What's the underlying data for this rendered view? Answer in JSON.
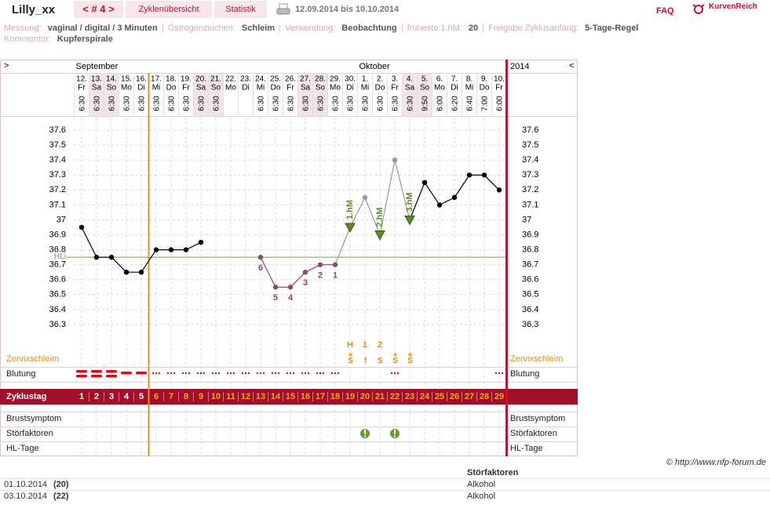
{
  "header": {
    "user": "Lilly_xx",
    "cycle_nav": "< # 4 >",
    "tabs": [
      "Zyklenübersicht",
      "Statistik"
    ],
    "date_range": "12.09.2014 bis 10.10.2014",
    "faq": "FAQ",
    "brand": "KurvenReich"
  },
  "info": {
    "fields": [
      {
        "label": "Messung:",
        "value": "vaginal / digital / 3 Minuten"
      },
      {
        "label": "Östrogenzeichen:",
        "value": "Schleim"
      },
      {
        "label": "Verwendung:",
        "value": "Beobachtung"
      },
      {
        "label": "früheste 1.hM:",
        "value": "20"
      },
      {
        "label": "Freigabe Zyklusanfang:",
        "value": "5-Tage-Regel"
      }
    ],
    "comment": {
      "label": "Kommentar:",
      "value": "Kupferspirale"
    }
  },
  "chart_data": {
    "type": "line",
    "nav_left": ">",
    "nav_right": "<",
    "year": "2014",
    "months": [
      "September",
      "Oktober"
    ],
    "days": [
      "12.",
      "13.",
      "14.",
      "15.",
      "16.",
      "17.",
      "18.",
      "19.",
      "20.",
      "21.",
      "22.",
      "23.",
      "24.",
      "25.",
      "26.",
      "27.",
      "28.",
      "29.",
      "30.",
      "1.",
      "2.",
      "3.",
      "4.",
      "5.",
      "6.",
      "7.",
      "8.",
      "9.",
      "10."
    ],
    "weekdays": [
      "Fr",
      "Sa",
      "So",
      "Mo",
      "Di",
      "Mi",
      "Do",
      "Fr",
      "Sa",
      "So",
      "Mo",
      "Di",
      "Mi",
      "Do",
      "Fr",
      "Sa",
      "So",
      "Mo",
      "Di",
      "Mi",
      "Do",
      "Fr",
      "Sa",
      "So",
      "Mo",
      "Di",
      "Mi",
      "Do",
      "Fr"
    ],
    "times": [
      "6:30",
      "6:30",
      "6:30",
      "6:30",
      "6:30",
      "6:30",
      "6:30",
      "6:30",
      "6:30",
      "6:30",
      null,
      null,
      "6:30",
      "6:30",
      "6:30",
      "6:30",
      "6:30",
      "6:30",
      "6:30",
      "6:30",
      "6:30",
      "6:30",
      "6:30",
      "9:50",
      "6:00",
      "6:20",
      "6:40",
      "7:00",
      "6:00"
    ],
    "values": [
      36.95,
      36.75,
      36.75,
      36.65,
      36.65,
      36.8,
      36.8,
      36.8,
      36.85,
      null,
      null,
      null,
      36.75,
      36.55,
      36.55,
      36.65,
      36.7,
      36.7,
      36.95,
      37.15,
      36.9,
      37.4,
      37.0,
      37.25,
      37.1,
      37.15,
      37.3,
      37.3,
      37.2
    ],
    "point_colors": [
      "#000000",
      "#000000",
      "#000000",
      "#000000",
      "#000000",
      "#000000",
      "#000000",
      "#000000",
      "#000000",
      null,
      null,
      null,
      "#8b4c5c",
      "#8b4c5c",
      "#8b4c5c",
      "#8b4c5c",
      "#8b4c5c",
      "#8b4c5c",
      "#5e8a2c",
      "#999999",
      "#5e8a2c",
      "#999999",
      "#5e8a2c",
      "#000000",
      "#000000",
      "#000000",
      "#000000",
      "#000000",
      "#000000"
    ],
    "point_labels": [
      null,
      null,
      null,
      null,
      null,
      null,
      null,
      null,
      null,
      null,
      null,
      null,
      "6",
      "5",
      "4",
      "3",
      "2",
      "1",
      null,
      null,
      null,
      null,
      null,
      null,
      null,
      null,
      null,
      null,
      null
    ],
    "hm_labels": [
      null,
      null,
      null,
      null,
      null,
      null,
      null,
      null,
      null,
      null,
      null,
      null,
      null,
      null,
      null,
      null,
      null,
      null,
      "1.hM",
      null,
      "2.hM",
      null,
      "3.hM",
      null,
      null,
      null,
      null,
      null,
      null
    ],
    "ylim": [
      36.2,
      37.7
    ],
    "yticks": [
      36.3,
      36.4,
      36.5,
      36.6,
      36.7,
      36.8,
      36.9,
      37,
      37.1,
      37.2,
      37.3,
      37.4,
      37.5,
      37.6
    ],
    "grid": true,
    "hl": {
      "label": "HLi",
      "value": 36.75,
      "color": "#7a9a4a"
    },
    "row_labels": [
      "Zervixschleim",
      "Blutung",
      "Zyklustag",
      "Brustsymptom",
      "Störfaktoren",
      "HL-Tage"
    ],
    "mucus_peak": [
      null,
      null,
      null,
      null,
      null,
      null,
      null,
      null,
      null,
      null,
      null,
      null,
      null,
      null,
      null,
      null,
      null,
      null,
      "H",
      "1",
      "2",
      null,
      null,
      null,
      null,
      null,
      null,
      null,
      null
    ],
    "mucus": [
      null,
      null,
      null,
      null,
      null,
      null,
      null,
      null,
      null,
      null,
      null,
      null,
      null,
      null,
      null,
      null,
      null,
      null,
      "+S",
      "f",
      "S",
      "+S",
      "+S",
      null,
      null,
      null,
      null,
      null,
      null
    ],
    "cycle_days": [
      1,
      2,
      3,
      4,
      5,
      6,
      7,
      8,
      9,
      10,
      11,
      12,
      13,
      14,
      15,
      16,
      17,
      18,
      19,
      20,
      21,
      22,
      23,
      24,
      25,
      26,
      27,
      28,
      29
    ]
  },
  "copyright": "© http://www.nfp-forum.de",
  "disturbances": {
    "header": "Störfaktoren",
    "rows": [
      [
        "01.10.2014",
        "(20)",
        "Alkohol"
      ],
      [
        "03.10.2014",
        "(22)",
        "Alkohol"
      ]
    ]
  }
}
